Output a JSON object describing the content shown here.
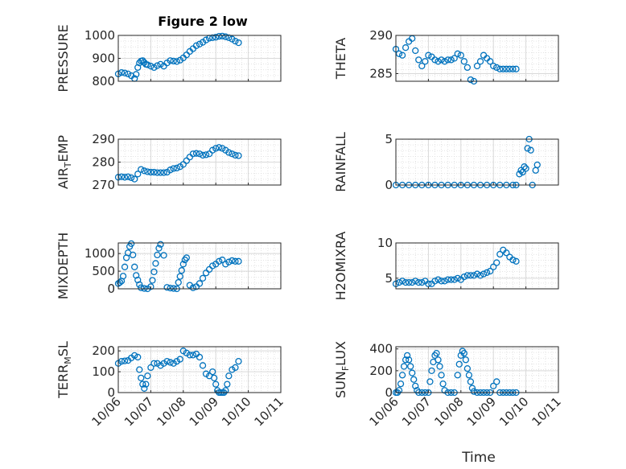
{
  "title": "Figure 2 low",
  "chart_data": [
    {
      "type": "scatter",
      "ylabel": "PRESSURE",
      "xlabel": "",
      "ylim": [
        800,
        1000
      ],
      "yticks": [
        800,
        900,
        1000
      ],
      "ytick_labels": [
        "800",
        "900",
        "1000"
      ],
      "x": [
        0.0,
        0.1,
        0.2,
        0.3,
        0.4,
        0.5,
        0.55,
        0.6,
        0.65,
        0.7,
        0.75,
        0.8,
        0.85,
        0.9,
        1.0,
        1.1,
        1.2,
        1.3,
        1.4,
        1.5,
        1.6,
        1.7,
        1.8,
        1.9,
        2.0,
        2.1,
        2.2,
        2.3,
        2.4,
        2.5,
        2.6,
        2.7,
        2.8,
        2.9,
        3.0,
        3.1,
        3.2,
        3.3,
        3.4,
        3.5,
        3.6,
        3.7
      ],
      "y": [
        832,
        838,
        836,
        832,
        824,
        812,
        830,
        860,
        880,
        888,
        890,
        882,
        874,
        872,
        866,
        860,
        868,
        874,
        866,
        880,
        890,
        888,
        886,
        892,
        902,
        915,
        930,
        942,
        955,
        962,
        970,
        980,
        988,
        990,
        992,
        996,
        997,
        994,
        990,
        984,
        975,
        968
      ]
    },
    {
      "type": "scatter",
      "ylabel": "THETA",
      "xlabel": "",
      "ylim": [
        284,
        290
      ],
      "yticks": [
        285,
        290
      ],
      "ytick_labels": [
        "285",
        "290"
      ],
      "x": [
        0.0,
        0.1,
        0.2,
        0.3,
        0.4,
        0.5,
        0.6,
        0.7,
        0.8,
        0.9,
        1.0,
        1.1,
        1.2,
        1.3,
        1.4,
        1.5,
        1.6,
        1.7,
        1.8,
        1.9,
        2.0,
        2.1,
        2.2,
        2.3,
        2.4,
        2.5,
        2.6,
        2.7,
        2.8,
        2.9,
        3.0,
        3.1,
        3.2,
        3.3,
        3.4,
        3.5,
        3.6,
        3.7
      ],
      "y": [
        288.2,
        287.6,
        287.4,
        288.4,
        289.2,
        289.6,
        288.0,
        286.8,
        286.0,
        286.6,
        287.4,
        287.2,
        286.8,
        286.6,
        286.8,
        286.6,
        286.8,
        286.8,
        287.0,
        287.6,
        287.4,
        286.6,
        285.8,
        284.2,
        284.0,
        286.0,
        286.6,
        287.4,
        287.0,
        286.6,
        286.0,
        285.8,
        285.6,
        285.6,
        285.6,
        285.6,
        285.6,
        285.6
      ]
    },
    {
      "type": "scatter",
      "ylabel": "AIR_TEMP",
      "xlabel": "",
      "ylim": [
        270,
        290
      ],
      "yticks": [
        270,
        280,
        290
      ],
      "ytick_labels": [
        "270",
        "280",
        "290"
      ],
      "x": [
        0.0,
        0.1,
        0.2,
        0.3,
        0.4,
        0.5,
        0.6,
        0.7,
        0.8,
        0.9,
        1.0,
        1.1,
        1.2,
        1.3,
        1.4,
        1.5,
        1.6,
        1.7,
        1.8,
        1.9,
        2.0,
        2.1,
        2.2,
        2.3,
        2.4,
        2.5,
        2.6,
        2.7,
        2.8,
        2.9,
        3.0,
        3.1,
        3.2,
        3.3,
        3.4,
        3.5,
        3.6,
        3.7
      ],
      "y": [
        273.4,
        273.6,
        273.4,
        273.6,
        273.2,
        272.6,
        274.8,
        276.8,
        276.2,
        275.8,
        275.6,
        275.6,
        275.4,
        275.4,
        275.4,
        275.6,
        276.6,
        277.2,
        277.4,
        278.0,
        279.0,
        280.6,
        282.2,
        283.6,
        283.8,
        283.6,
        283.0,
        283.2,
        283.6,
        285.2,
        286.0,
        286.4,
        286.0,
        285.2,
        284.2,
        283.6,
        283.0,
        282.8
      ]
    },
    {
      "type": "scatter",
      "ylabel": "RAINFALL",
      "xlabel": "",
      "ylim": [
        0,
        5
      ],
      "yticks": [
        0,
        5
      ],
      "ytick_labels": [
        "0",
        "5"
      ],
      "x": [
        0.0,
        0.2,
        0.4,
        0.6,
        0.8,
        1.0,
        1.2,
        1.4,
        1.6,
        1.8,
        2.0,
        2.2,
        2.4,
        2.6,
        2.8,
        3.0,
        3.2,
        3.4,
        3.6,
        3.7,
        3.8,
        3.85,
        3.9,
        3.95,
        4.0,
        4.05,
        4.1,
        4.15,
        4.2,
        4.3,
        4.35
      ],
      "y": [
        0,
        0,
        0,
        0,
        0,
        0,
        0,
        0,
        0,
        0,
        0,
        0,
        0,
        0,
        0,
        0,
        0,
        0,
        0,
        0,
        1.2,
        1.6,
        1.4,
        2.0,
        1.8,
        4.0,
        5.0,
        3.8,
        0,
        1.6,
        2.2
      ]
    },
    {
      "type": "scatter",
      "ylabel": "MIXDEPTH",
      "xlabel": "",
      "ylim": [
        0,
        1300
      ],
      "yticks": [
        0,
        500,
        1000
      ],
      "ytick_labels": [
        "0",
        "500",
        "1000"
      ],
      "x": [
        0.0,
        0.05,
        0.1,
        0.15,
        0.2,
        0.25,
        0.3,
        0.35,
        0.4,
        0.45,
        0.5,
        0.55,
        0.6,
        0.65,
        0.7,
        0.8,
        0.9,
        1.0,
        1.05,
        1.1,
        1.15,
        1.2,
        1.25,
        1.3,
        1.4,
        1.5,
        1.6,
        1.7,
        1.8,
        1.85,
        1.9,
        1.95,
        2.0,
        2.05,
        2.1,
        2.2,
        2.3,
        2.4,
        2.5,
        2.6,
        2.7,
        2.8,
        2.9,
        3.0,
        3.1,
        3.2,
        3.3,
        3.4,
        3.5,
        3.6,
        3.7
      ],
      "y": [
        150,
        180,
        220,
        360,
        620,
        880,
        1020,
        1200,
        1280,
        960,
        620,
        380,
        250,
        120,
        30,
        10,
        0,
        60,
        240,
        480,
        720,
        960,
        1150,
        1260,
        950,
        40,
        20,
        10,
        0,
        180,
        350,
        520,
        700,
        820,
        880,
        100,
        30,
        60,
        150,
        300,
        450,
        550,
        650,
        700,
        780,
        820,
        700,
        760,
        800,
        780,
        780
      ]
    },
    {
      "type": "scatter",
      "ylabel": "H2OMIXRA",
      "xlabel": "",
      "ylim": [
        3.5,
        10
      ],
      "yticks": [
        5,
        10
      ],
      "ytick_labels": [
        "5",
        "10"
      ],
      "x": [
        0.0,
        0.1,
        0.2,
        0.3,
        0.4,
        0.5,
        0.6,
        0.7,
        0.8,
        0.9,
        1.0,
        1.1,
        1.2,
        1.3,
        1.4,
        1.5,
        1.6,
        1.7,
        1.8,
        1.9,
        2.0,
        2.1,
        2.2,
        2.3,
        2.4,
        2.5,
        2.6,
        2.7,
        2.8,
        2.9,
        3.0,
        3.1,
        3.2,
        3.3,
        3.4,
        3.5,
        3.6,
        3.7
      ],
      "y": [
        4.2,
        4.4,
        4.6,
        4.4,
        4.4,
        4.4,
        4.6,
        4.4,
        4.4,
        4.6,
        4.2,
        4.2,
        4.6,
        4.8,
        4.6,
        4.6,
        4.8,
        4.8,
        4.8,
        5.0,
        4.8,
        5.2,
        5.4,
        5.4,
        5.4,
        5.6,
        5.4,
        5.6,
        5.8,
        6.0,
        6.6,
        7.2,
        8.4,
        9.0,
        8.6,
        8.0,
        7.6,
        7.4
      ]
    },
    {
      "type": "scatter",
      "ylabel": "TERR_MSL",
      "xlabel": "",
      "ylim": [
        0,
        220
      ],
      "yticks": [
        0,
        100,
        200
      ],
      "ytick_labels": [
        "0",
        "100",
        "200"
      ],
      "x": [
        0.0,
        0.1,
        0.2,
        0.3,
        0.4,
        0.5,
        0.6,
        0.65,
        0.7,
        0.75,
        0.8,
        0.85,
        0.9,
        1.0,
        1.1,
        1.2,
        1.3,
        1.4,
        1.5,
        1.6,
        1.7,
        1.8,
        1.9,
        2.0,
        2.1,
        2.2,
        2.3,
        2.4,
        2.5,
        2.6,
        2.7,
        2.8,
        2.9,
        2.95,
        3.0,
        3.05,
        3.1,
        3.15,
        3.2,
        3.25,
        3.3,
        3.35,
        3.4,
        3.5,
        3.6,
        3.7
      ],
      "y": [
        140,
        150,
        152,
        154,
        166,
        178,
        170,
        110,
        70,
        40,
        20,
        40,
        80,
        120,
        140,
        140,
        130,
        140,
        150,
        145,
        140,
        150,
        160,
        200,
        190,
        180,
        180,
        185,
        170,
        130,
        90,
        80,
        100,
        70,
        40,
        10,
        0,
        0,
        0,
        0,
        10,
        40,
        80,
        110,
        120,
        150
      ]
    },
    {
      "type": "scatter",
      "ylabel": "SUN_FLUX",
      "xlabel": "Time",
      "ylim": [
        0,
        420
      ],
      "yticks": [
        0,
        200,
        400
      ],
      "ytick_labels": [
        "0",
        "200",
        "400"
      ],
      "x": [
        0.0,
        0.05,
        0.1,
        0.15,
        0.2,
        0.25,
        0.3,
        0.35,
        0.4,
        0.45,
        0.5,
        0.55,
        0.6,
        0.65,
        0.7,
        0.8,
        0.9,
        1.0,
        1.05,
        1.1,
        1.15,
        1.2,
        1.25,
        1.3,
        1.35,
        1.4,
        1.45,
        1.5,
        1.6,
        1.7,
        1.8,
        1.9,
        1.95,
        2.0,
        2.05,
        2.1,
        2.15,
        2.2,
        2.25,
        2.3,
        2.35,
        2.4,
        2.5,
        2.6,
        2.7,
        2.8,
        2.9,
        3.0,
        3.1,
        3.2,
        3.3,
        3.4,
        3.5,
        3.6,
        3.7
      ],
      "y": [
        0,
        0,
        20,
        80,
        160,
        240,
        300,
        340,
        300,
        240,
        180,
        120,
        60,
        20,
        0,
        0,
        0,
        0,
        100,
        200,
        280,
        340,
        360,
        300,
        240,
        160,
        80,
        20,
        0,
        0,
        0,
        160,
        260,
        340,
        380,
        360,
        300,
        220,
        160,
        100,
        40,
        10,
        0,
        0,
        0,
        0,
        0,
        60,
        100,
        0,
        0,
        0,
        0,
        0,
        0
      ]
    }
  ],
  "xaxis": {
    "xlim": [
      0,
      5
    ],
    "ticks": [
      0,
      1,
      2,
      3,
      4,
      5
    ],
    "tick_labels": [
      "10/06",
      "10/07",
      "10/08",
      "10/09",
      "10/10",
      "10/11"
    ],
    "label": "Time"
  },
  "colors": {
    "marker": "#0072BD",
    "grid": "#d9d9d9",
    "axis": "#262626"
  }
}
